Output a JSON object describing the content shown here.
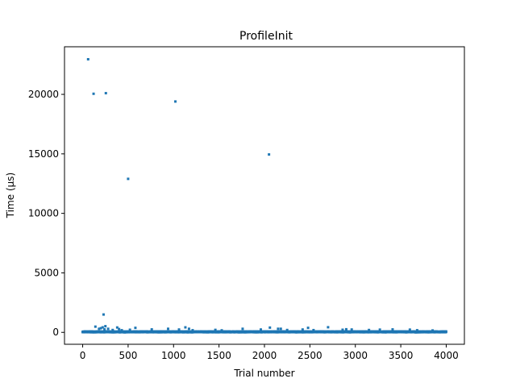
{
  "chart_data": {
    "type": "scatter",
    "title": "ProfileInit",
    "xlabel": "Trial number",
    "ylabel": "Time (µs)",
    "xlim": [
      -200,
      4200
    ],
    "ylim": [
      -1000,
      24000
    ],
    "xticks": [
      0,
      500,
      1000,
      1500,
      2000,
      2500,
      3000,
      3500,
      4000
    ],
    "yticks": [
      0,
      5000,
      10000,
      15000,
      20000
    ],
    "grid": false,
    "marker_color": "#1f77b4",
    "series": [
      {
        "outliers": [
          [
            60,
            22950
          ],
          [
            120,
            20050
          ],
          [
            255,
            20100
          ],
          [
            500,
            12900
          ],
          [
            1020,
            19400
          ],
          [
            2050,
            14950
          ],
          [
            230,
            1500
          ],
          [
            140,
            480
          ],
          [
            180,
            300
          ],
          [
            200,
            350
          ],
          [
            220,
            420
          ],
          [
            240,
            260
          ],
          [
            250,
            520
          ],
          [
            280,
            300
          ],
          [
            330,
            200
          ],
          [
            380,
            410
          ],
          [
            400,
            280
          ],
          [
            430,
            180
          ],
          [
            520,
            220
          ],
          [
            580,
            380
          ],
          [
            760,
            250
          ],
          [
            940,
            300
          ],
          [
            1060,
            240
          ],
          [
            1130,
            420
          ],
          [
            1170,
            300
          ],
          [
            1210,
            180
          ],
          [
            1460,
            210
          ],
          [
            1530,
            170
          ],
          [
            1760,
            300
          ],
          [
            1960,
            240
          ],
          [
            2060,
            400
          ],
          [
            2150,
            300
          ],
          [
            2180,
            300
          ],
          [
            2250,
            200
          ],
          [
            2420,
            240
          ],
          [
            2480,
            380
          ],
          [
            2540,
            190
          ],
          [
            2700,
            430
          ],
          [
            2860,
            220
          ],
          [
            2900,
            260
          ],
          [
            2960,
            240
          ],
          [
            3150,
            200
          ],
          [
            3270,
            230
          ],
          [
            3410,
            250
          ],
          [
            3600,
            230
          ],
          [
            3680,
            180
          ],
          [
            3850,
            160
          ]
        ],
        "baseline": {
          "count": 4000,
          "typical": 40,
          "jitter": 30
        }
      }
    ]
  }
}
